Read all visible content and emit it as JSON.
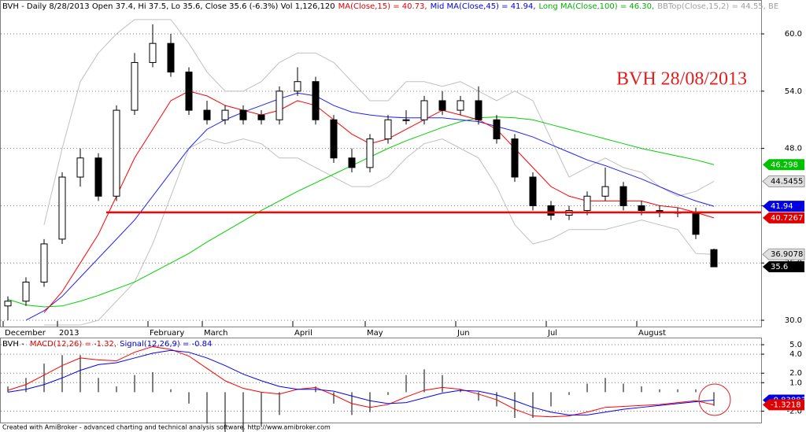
{
  "chart_data": [
    {
      "type": "candlestick",
      "header": [
        {
          "text": "BVH - Daily 8/28/2013 Open 37.4, Hi 37.5, Lo 35.6, Close 35.6 (-6.3%) Vol 1,126,120",
          "color": "#000000"
        },
        {
          "text": "MA(Close,15) = 40.73,",
          "color": "#e00000"
        },
        {
          "text": "Mid MA(Close,45) = 41.94,",
          "color": "#0000e0"
        },
        {
          "text": "Long MA(Close,100) = 46.30,",
          "color": "#00b000"
        },
        {
          "text": "BBTop(Close,15,2) = 44.55, BE",
          "color": "#a0a0a0"
        }
      ],
      "annotation": "BVH 28/08/2013",
      "categories": [
        "December",
        null,
        null,
        "2013",
        null,
        null,
        null,
        null,
        "February",
        null,
        null,
        "March",
        null,
        null,
        null,
        null,
        "April",
        null,
        null,
        null,
        "May",
        null,
        null,
        null,
        null,
        "Jun",
        null,
        null,
        null,
        null,
        "Jul",
        null,
        null,
        null,
        null,
        "August",
        null,
        null,
        null,
        null
      ],
      "open": [
        31.5,
        32,
        34,
        38.5,
        45,
        47,
        43,
        52,
        57,
        59,
        56,
        52,
        51,
        52,
        51.5,
        51,
        54,
        55,
        51,
        47,
        46,
        49,
        51,
        51,
        53,
        52,
        53,
        51,
        49,
        45,
        42,
        41,
        41.5,
        43,
        44,
        42,
        41.5,
        41.3,
        41.3,
        37.4
      ],
      "high": [
        32.5,
        34.5,
        38.5,
        45.5,
        48,
        47.5,
        52.5,
        58,
        61,
        60,
        56.5,
        53,
        52.5,
        52.5,
        52,
        54.5,
        56.5,
        55.5,
        51.5,
        48,
        49.5,
        51.5,
        52,
        53.5,
        54,
        53.5,
        54.5,
        51.5,
        49.5,
        45.5,
        42.5,
        42,
        43.5,
        46,
        44.5,
        42.5,
        42,
        41.8,
        41.8,
        37.5
      ],
      "low": [
        30,
        31.5,
        33.5,
        38,
        44,
        42.5,
        42.5,
        51.5,
        56.5,
        55.5,
        51.5,
        50.5,
        50.5,
        50.5,
        50.5,
        50.5,
        53.5,
        50.5,
        46.5,
        45.5,
        45.5,
        48.5,
        50.5,
        50.5,
        51.5,
        51.5,
        50.5,
        48.5,
        44.5,
        41.5,
        40.5,
        40.5,
        41,
        42.5,
        41.5,
        41,
        40.8,
        40.8,
        38.5,
        35.6
      ],
      "close": [
        32,
        34,
        38,
        45,
        47,
        43,
        52,
        57,
        59,
        56,
        52,
        51,
        52,
        51,
        51,
        54,
        55,
        51,
        47,
        46,
        49,
        51,
        51,
        53,
        52,
        53,
        51,
        49,
        45,
        42,
        41,
        41.5,
        43,
        44,
        42,
        41.5,
        41.3,
        41.3,
        39,
        35.6
      ],
      "series": [
        {
          "color": "#c0c0c0",
          "values": [
            null,
            null,
            40,
            48,
            55,
            58,
            60,
            61.5,
            61.5,
            61.5,
            59,
            56,
            54,
            54,
            55,
            57,
            58,
            58,
            57,
            55,
            53,
            53,
            55,
            55,
            54.5,
            55,
            54,
            53,
            54,
            53,
            49,
            45,
            46,
            47,
            46,
            45.5,
            44,
            43,
            43.5,
            44.55
          ]
        },
        {
          "color": "#c0c0c0",
          "values": [
            null,
            null,
            29.5,
            29.5,
            29.5,
            30,
            32,
            34,
            38,
            43,
            48,
            49,
            48.5,
            49,
            48.5,
            47,
            47,
            46,
            45,
            44,
            44,
            45,
            47,
            48.5,
            49,
            48,
            47,
            44,
            40,
            38,
            38.5,
            39.5,
            39.5,
            39.5,
            40,
            40.5,
            40,
            39.5,
            37,
            36.9078
          ]
        },
        {
          "color": "#00d000",
          "values": [
            32.2,
            31.6,
            31.4,
            31.5,
            32,
            32.6,
            33.3,
            34,
            35,
            36,
            37,
            38.2,
            39.3,
            40.4,
            41.5,
            42.5,
            43.5,
            44.4,
            45.3,
            46.2,
            47.1,
            48,
            48.8,
            49.5,
            50.2,
            50.8,
            51.2,
            51.3,
            51.2,
            51,
            50.5,
            50,
            49.5,
            49,
            48.5,
            48,
            47.6,
            47.2,
            46.8,
            46.298
          ]
        },
        {
          "color": "#2020ff",
          "values": [
            null,
            30,
            31,
            32.5,
            34.5,
            36.5,
            38.5,
            40.5,
            43,
            45.5,
            48,
            50,
            51,
            51.8,
            52.5,
            53.2,
            53.8,
            53.5,
            52.5,
            51.8,
            51.5,
            51.3,
            51.2,
            51.2,
            51.2,
            51,
            50.8,
            50.3,
            49.8,
            49.2,
            48.4,
            47.6,
            46.8,
            46.2,
            45.5,
            44.8,
            44,
            43.2,
            42.5,
            41.94
          ]
        },
        {
          "color": "#ff0000",
          "values": [
            null,
            null,
            30.8,
            33,
            36,
            39,
            43,
            47,
            50,
            53,
            54,
            53.5,
            52.5,
            52,
            51.5,
            52,
            53,
            52.5,
            51,
            49.5,
            48.5,
            49,
            50,
            51,
            52,
            51.5,
            51,
            50,
            48,
            46,
            44,
            43,
            42.5,
            42.5,
            42.5,
            42.5,
            42,
            41.8,
            41.3,
            40.7267
          ]
        }
      ],
      "hline": 41.3,
      "ylim": [
        29.34,
        61.9
      ],
      "yticks": [
        {
          "value": 30,
          "label": "30.0"
        },
        {
          "value": 36,
          "label": "36.0"
        },
        {
          "value": 42,
          "label": "42.0"
        },
        {
          "value": 48,
          "label": "48.0"
        },
        {
          "value": 54,
          "label": "54.0"
        },
        {
          "value": 60,
          "label": "60.0"
        }
      ],
      "grid": true,
      "tags": [
        {
          "value": 46.298,
          "color": "#00c000"
        },
        {
          "value": 44.5455,
          "color": "#e0e0e0"
        },
        {
          "value": 41.94,
          "color": "#0000e0"
        },
        {
          "value": 40.7267,
          "color": "#e00000"
        },
        {
          "value": 36.9078,
          "color": "#e0e0e0"
        },
        {
          "value": 35.6,
          "color": "#000000"
        }
      ]
    },
    {
      "type": "line",
      "header": [
        {
          "text": "BVH - ",
          "color": "#000000"
        },
        {
          "text": "MACD(12,26) = -1.32,",
          "color": "#e00000"
        },
        {
          "text": "Signal(12,26,9) = -0.84",
          "color": "#0000e0"
        }
      ],
      "series": [
        {
          "color": "#ff0000",
          "values": [
            0.2,
            0.8,
            1.8,
            2.8,
            3.6,
            3.4,
            3.3,
            4.2,
            4.8,
            4.5,
            3.8,
            2.5,
            1.2,
            0.4,
            0,
            -0.2,
            0.3,
            0.5,
            -0.3,
            -1.2,
            -1.6,
            -1.3,
            -0.5,
            0.2,
            0.5,
            0.3,
            -0.2,
            -0.8,
            -1.8,
            -2.5,
            -2.6,
            -2.5,
            -2.1,
            -1.6,
            -1.5,
            -1.4,
            -1.3,
            -1.1,
            -0.9,
            -1.3218
          ]
        },
        {
          "color": "#0000ff",
          "values": [
            0,
            0.3,
            0.8,
            1.5,
            2.3,
            2.9,
            3.1,
            3.6,
            4.1,
            4.4,
            4.2,
            3.6,
            2.8,
            1.9,
            1.2,
            0.6,
            0.3,
            0.3,
            0.1,
            -0.4,
            -0.9,
            -1.2,
            -1.1,
            -0.6,
            -0.1,
            0.2,
            0.1,
            -0.3,
            -0.9,
            -1.6,
            -2.1,
            -2.4,
            -2.4,
            -2.1,
            -1.8,
            -1.6,
            -1.4,
            -1.2,
            -1,
            -0.838839
          ]
        }
      ],
      "ylim": [
        -3.2,
        5.5
      ],
      "yticks": [
        {
          "value": 5,
          "label": "5.0"
        },
        {
          "value": 4,
          "label": "4.0"
        },
        {
          "value": 2,
          "label": "2.0"
        },
        {
          "value": 1,
          "label": "1.0"
        },
        {
          "value": -2,
          "label": "-2.0"
        }
      ],
      "grid": true,
      "tags": [
        {
          "value": -0.838839,
          "color": "#0000e0"
        },
        {
          "value": -1.3218,
          "color": "#e00000"
        }
      ]
    }
  ],
  "footer": "Created with AmiBroker - advanced charting and technical analysis software. http://www.amibroker.com"
}
